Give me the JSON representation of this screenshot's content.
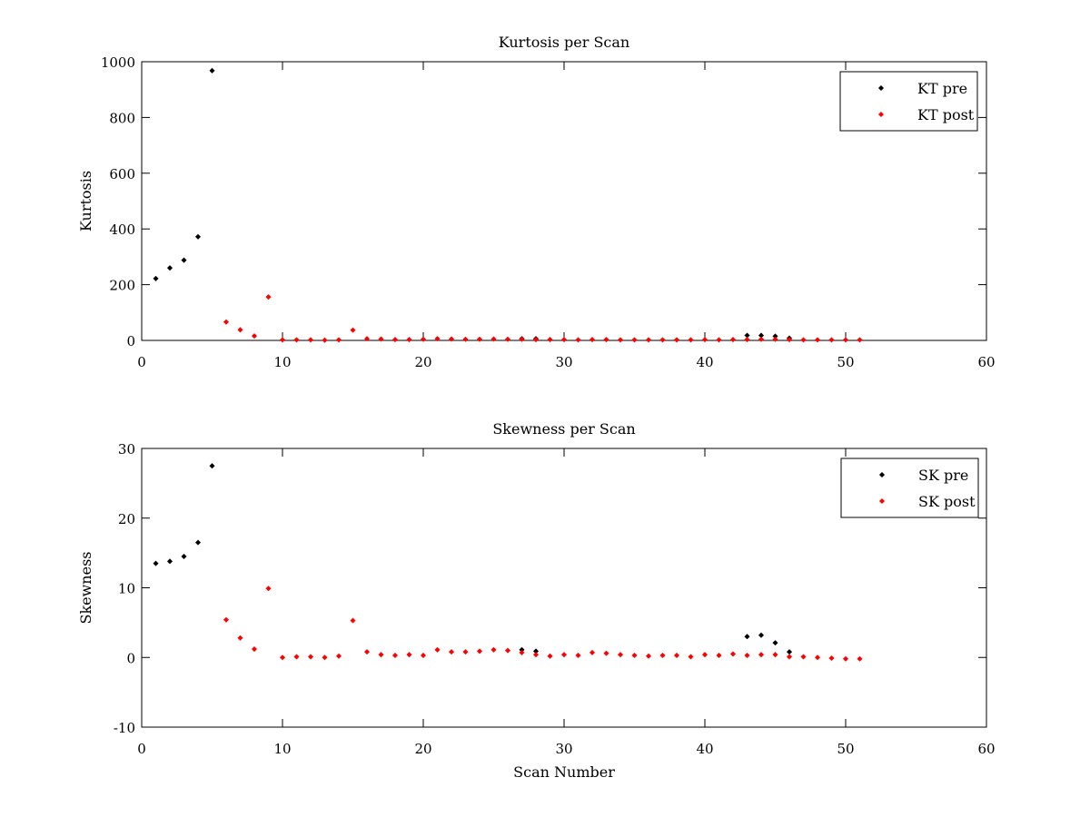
{
  "chart_data": [
    {
      "type": "scatter",
      "title": "Kurtosis per Scan",
      "xlabel": "",
      "ylabel": "Kurtosis",
      "xlim": [
        0,
        60
      ],
      "ylim": [
        0,
        1000
      ],
      "xticks": [
        0,
        10,
        20,
        30,
        40,
        50,
        60
      ],
      "yticks": [
        0,
        200,
        400,
        600,
        800,
        1000
      ],
      "xtick_labels": [
        "0",
        "10",
        "20",
        "30",
        "40",
        "50",
        "60"
      ],
      "ytick_labels": [
        "0",
        "200",
        "400",
        "600",
        "800",
        "1000"
      ],
      "grid": false,
      "legend_position": "top-right",
      "series": [
        {
          "name": "KT pre",
          "color": "#000000",
          "x": [
            1,
            2,
            3,
            4,
            5,
            27,
            28,
            43,
            44,
            45,
            46
          ],
          "y": [
            222,
            260,
            288,
            372,
            968,
            6,
            6,
            18,
            18,
            15,
            8
          ]
        },
        {
          "name": "KT post",
          "color": "#ff0000",
          "x": [
            6,
            7,
            8,
            9,
            10,
            11,
            12,
            13,
            14,
            15,
            16,
            17,
            18,
            19,
            20,
            21,
            22,
            23,
            24,
            25,
            26,
            27,
            28,
            29,
            30,
            31,
            32,
            33,
            34,
            35,
            36,
            37,
            38,
            39,
            40,
            41,
            42,
            43,
            44,
            45,
            46,
            47,
            48,
            49,
            50,
            51
          ],
          "y": [
            66,
            38,
            16,
            156,
            2,
            2,
            2,
            1,
            2,
            37,
            6,
            5,
            3,
            3,
            4,
            6,
            5,
            4,
            4,
            5,
            4,
            4,
            3,
            3,
            3,
            2,
            3,
            3,
            2,
            2,
            2,
            2,
            2,
            2,
            3,
            2,
            3,
            3,
            4,
            4,
            3,
            2,
            2,
            2,
            2,
            2
          ]
        }
      ]
    },
    {
      "type": "scatter",
      "title": "Skewness per Scan",
      "xlabel": "Scan Number",
      "ylabel": "Skewness",
      "xlim": [
        0,
        60
      ],
      "ylim": [
        -10,
        30
      ],
      "xticks": [
        0,
        10,
        20,
        30,
        40,
        50,
        60
      ],
      "yticks": [
        -10,
        0,
        10,
        20,
        30
      ],
      "xtick_labels": [
        "0",
        "10",
        "20",
        "30",
        "40",
        "50",
        "60"
      ],
      "ytick_labels": [
        "-10",
        "0",
        "10",
        "20",
        "30"
      ],
      "grid": false,
      "legend_position": "top-right",
      "series": [
        {
          "name": "SK pre",
          "color": "#000000",
          "x": [
            1,
            2,
            3,
            4,
            5,
            27,
            28,
            43,
            44,
            45,
            46
          ],
          "y": [
            13.5,
            13.8,
            14.5,
            16.5,
            27.5,
            1.1,
            0.9,
            3.0,
            3.2,
            2.1,
            0.8
          ]
        },
        {
          "name": "SK post",
          "color": "#ff0000",
          "x": [
            6,
            7,
            8,
            9,
            10,
            11,
            12,
            13,
            14,
            15,
            16,
            17,
            18,
            19,
            20,
            21,
            22,
            23,
            24,
            25,
            26,
            27,
            28,
            29,
            30,
            31,
            32,
            33,
            34,
            35,
            36,
            37,
            38,
            39,
            40,
            41,
            42,
            43,
            44,
            45,
            46,
            47,
            48,
            49,
            50,
            51
          ],
          "y": [
            5.4,
            2.8,
            1.2,
            9.9,
            0.0,
            0.1,
            0.1,
            0.0,
            0.2,
            5.3,
            0.8,
            0.4,
            0.3,
            0.4,
            0.3,
            1.1,
            0.8,
            0.8,
            0.9,
            1.1,
            1.0,
            0.7,
            0.4,
            0.2,
            0.4,
            0.3,
            0.7,
            0.6,
            0.4,
            0.3,
            0.2,
            0.3,
            0.3,
            0.1,
            0.4,
            0.3,
            0.5,
            0.3,
            0.4,
            0.4,
            0.1,
            0.1,
            0.0,
            -0.1,
            -0.2,
            -0.2
          ]
        }
      ]
    }
  ]
}
